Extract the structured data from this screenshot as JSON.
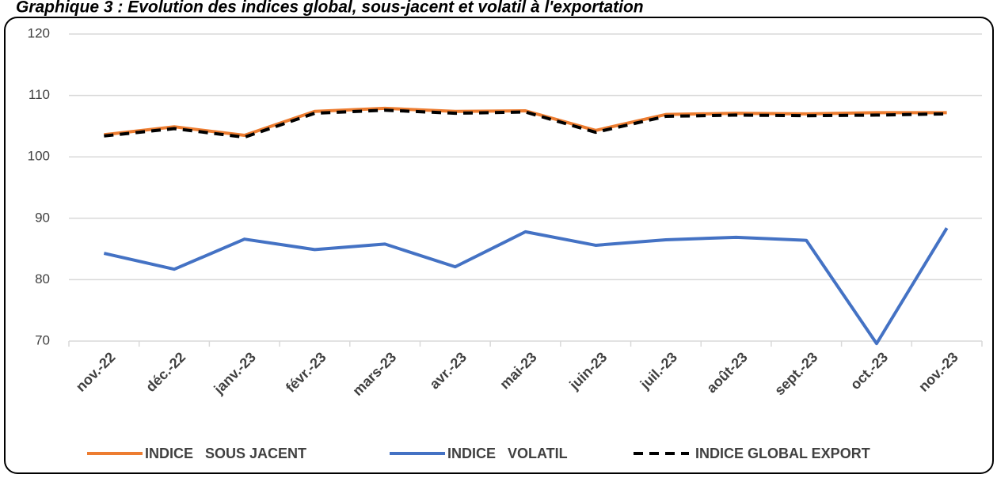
{
  "chart_data": {
    "type": "line",
    "title": "Graphique 3 : Évolution des indices global, sous-jacent et volatil à l'exportation",
    "categories": [
      "nov.-22",
      "déc.-22",
      "janv.-23",
      "févr.-23",
      "mars-23",
      "avr.-23",
      "mai-23",
      "juin-23",
      "juil.-23",
      "août-23",
      "sept.-23",
      "oct.-23",
      "nov.-23"
    ],
    "series": [
      {
        "name": "INDICE   SOUS JACENT",
        "color": "#ed7d31",
        "values": [
          103.6,
          104.9,
          103.5,
          107.4,
          107.9,
          107.4,
          107.5,
          104.3,
          106.9,
          107.1,
          107.0,
          107.2,
          107.2
        ]
      },
      {
        "name": "INDICE   VOLATIL",
        "color": "#4472c4",
        "values": [
          84.3,
          81.7,
          86.6,
          84.9,
          85.8,
          82.1,
          87.8,
          85.6,
          86.5,
          86.9,
          86.4,
          69.6,
          88.4
        ]
      },
      {
        "name": "INDICE GLOBAL EXPORT",
        "color": "#000000",
        "dashed": true,
        "values": [
          103.4,
          104.6,
          103.2,
          107.1,
          107.6,
          107.1,
          107.3,
          104.0,
          106.6,
          106.8,
          106.7,
          106.8,
          107.0
        ]
      }
    ],
    "ylim": [
      70,
      120
    ],
    "yticks": [
      70,
      80,
      90,
      100,
      110,
      120
    ],
    "grid": true,
    "legend": "bottom"
  }
}
